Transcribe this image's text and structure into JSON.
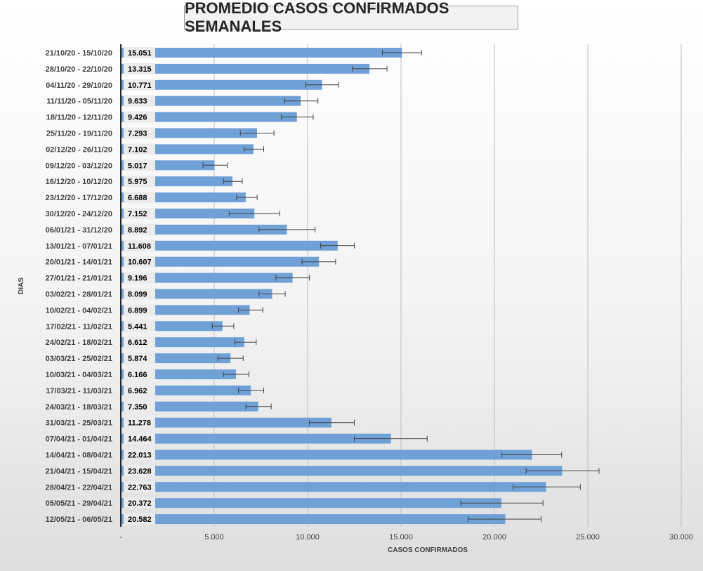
{
  "chart_data": {
    "type": "bar",
    "orientation": "horizontal",
    "title": "PROMEDIO CASOS CONFIRMADOS SEMANALES",
    "xlabel": "CASOS CONFIRMADOS",
    "ylabel": "DIAS",
    "xlim": [
      0,
      30000
    ],
    "x_ticks": [
      0,
      5000,
      10000,
      15000,
      20000,
      25000,
      30000
    ],
    "x_tick_labels": [
      "-",
      "5.000",
      "10.000",
      "15.000",
      "20.000",
      "25.000",
      "30.000"
    ],
    "gridlines": "vertical",
    "error_bars": true,
    "bar_color": "#6fa1d7",
    "categories": [
      "21/10/20 - 15/10/20",
      "28/10/20 - 22/10/20",
      "04/11/20 - 29/10/20",
      "11/11/20 - 05/11/20",
      "18/11/20 - 12/11/20",
      "25/11/20 - 19/11/20",
      "02/12/20 - 26/11/20",
      "09/12/20 - 03/12/20",
      "16/12/20 - 10/12/20",
      "23/12/20 - 17/12/20",
      "30/12/20 - 24/12/20",
      "06/01/21 - 31/12/20",
      "13/01/21 - 07/01/21",
      "20/01/21 - 14/01/21",
      "27/01/21 - 21/01/21",
      "03/02/21 - 28/01/21",
      "10/02/21 - 04/02/21",
      "17/02/21 - 11/02/21",
      "24/02/21 - 18/02/21",
      "03/03/21 - 25/02/21",
      "10/03/21 - 04/03/21",
      "17/03/21 - 11/03/21",
      "24/03/21 - 18/03/21",
      "31/03/21 - 25/03/21",
      "07/04/21 - 01/04/21",
      "14/04/21 - 08/04/21",
      "21/04/21 - 15/04/21",
      "28/04/21 - 22/04/21",
      "05/05/21 - 29/04/21",
      "12/05/21 - 06/05/21"
    ],
    "values": [
      15051,
      13315,
      10771,
      9633,
      9426,
      7293,
      7102,
      5017,
      5975,
      6688,
      7152,
      8892,
      11608,
      10607,
      9196,
      8099,
      6899,
      5441,
      6612,
      5874,
      6166,
      6962,
      7350,
      11278,
      14464,
      22013,
      23628,
      22763,
      20372,
      20582
    ],
    "value_labels": [
      "15.051",
      "13.315",
      "10.771",
      "9.633",
      "9.426",
      "7.293",
      "7.102",
      "5.017",
      "5.975",
      "6.688",
      "7.152",
      "8.892",
      "11.608",
      "10.607",
      "9.196",
      "8.099",
      "6.899",
      "5.441",
      "6.612",
      "5.874",
      "6.166",
      "6.962",
      "7.350",
      "11.278",
      "14.464",
      "22.013",
      "23.628",
      "22.763",
      "20.372",
      "20.582"
    ],
    "error_low": [
      14000,
      12400,
      9900,
      8750,
      8600,
      6400,
      6600,
      4400,
      5500,
      6200,
      5800,
      7400,
      10700,
      9700,
      8300,
      7400,
      6300,
      4900,
      6100,
      5200,
      5500,
      6300,
      6700,
      10100,
      12500,
      20400,
      21700,
      21000,
      18200,
      18600
    ],
    "error_high": [
      16100,
      14250,
      11650,
      10550,
      10300,
      8200,
      7650,
      5700,
      6500,
      7300,
      8500,
      10400,
      12500,
      11500,
      10100,
      8800,
      7600,
      6050,
      7250,
      6550,
      6850,
      7650,
      8050,
      12500,
      16400,
      23600,
      25600,
      24600,
      22600,
      22500
    ]
  }
}
